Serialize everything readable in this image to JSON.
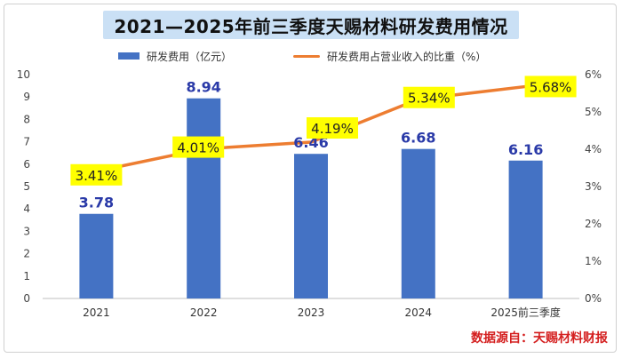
{
  "chart_data": {
    "type": "bar+line",
    "title": "2021—2025年前三季度天赐材料研发费用情况",
    "categories": [
      "2021",
      "2022",
      "2023",
      "2024",
      "2025前三季度"
    ],
    "series": [
      {
        "name": "研发费用（亿元）",
        "type": "bar",
        "axis": "left",
        "color": "#4472c4",
        "values": [
          3.78,
          8.94,
          6.46,
          6.68,
          6.16
        ],
        "labels": [
          "3.78",
          "8.94",
          "6.46",
          "6.68",
          "6.16"
        ]
      },
      {
        "name": "研发费用占营业收入的比重（%）",
        "type": "line",
        "axis": "right",
        "color": "#ed7d31",
        "values": [
          3.41,
          4.01,
          4.19,
          5.34,
          5.68
        ],
        "labels": [
          "3.41%",
          "4.01%",
          "4.19%",
          "5.34%",
          "5.68%"
        ]
      }
    ],
    "y_left": {
      "range": [
        0,
        10
      ],
      "ticks": [
        "0",
        "1",
        "2",
        "3",
        "4",
        "5",
        "6",
        "7",
        "8",
        "9",
        "10"
      ]
    },
    "y_right": {
      "range": [
        0,
        6
      ],
      "ticks": [
        "0%",
        "1%",
        "2%",
        "3%",
        "4%",
        "5%",
        "6%"
      ]
    },
    "legend_position": "top",
    "grid": false
  },
  "source_note": "数据源自：天赐材料财报",
  "colors": {
    "bar": "#4472c4",
    "line": "#ed7d31",
    "bar_label": "#2a3aa8",
    "line_label_bg": "#ffff00",
    "title_band": "#9ec7ec",
    "source": "#d41f1f"
  }
}
